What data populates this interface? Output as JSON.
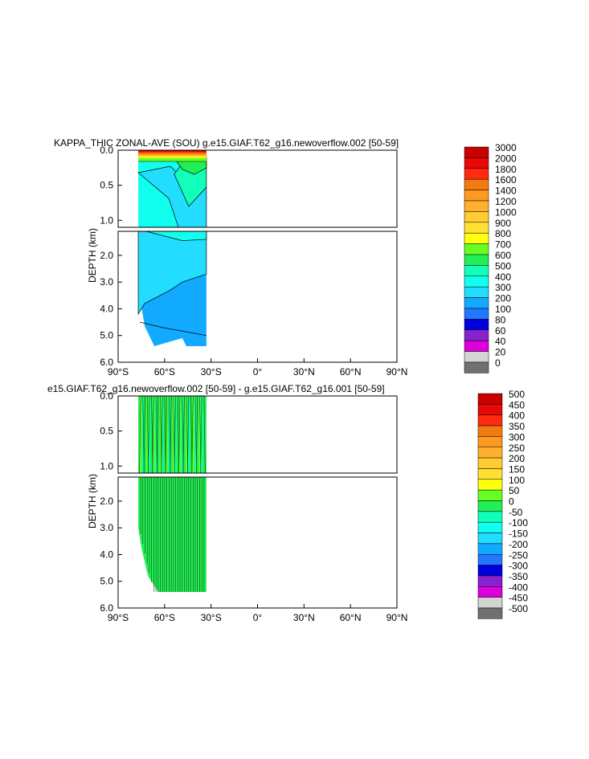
{
  "chart_data": [
    {
      "type": "contour",
      "title": "KAPPA_THIC ZONAL-AVE (SOU) g.e15.GIAF.T62_g16.newoverflow.002 [50-59]",
      "xlabel": "",
      "ylabel": "DEPTH (km)",
      "x_ticks": [
        "90°S",
        "60°S",
        "30°S",
        "0°",
        "30°N",
        "60°N",
        "90°N"
      ],
      "upper_y_ticks": [
        "0.0",
        "0.5",
        "1.0"
      ],
      "lower_y_ticks": [
        "2.0",
        "3.0",
        "4.0",
        "5.0",
        "6.0"
      ],
      "xlim": [
        -90,
        90
      ],
      "ylim": [
        0,
        6
      ],
      "depth_break_km": 1.1,
      "colorbar": {
        "levels": [
          "3000",
          "2000",
          "1800",
          "1600",
          "1400",
          "1200",
          "1000",
          "900",
          "800",
          "700",
          "600",
          "500",
          "400",
          "300",
          "200",
          "100",
          "80",
          "60",
          "40",
          "20",
          "0"
        ],
        "colors": [
          "#c80000",
          "#e80808",
          "#ff2a10",
          "#f27a10",
          "#ff9a20",
          "#ffb030",
          "#ffcc33",
          "#ffe033",
          "#ffff10",
          "#66ff22",
          "#22ee55",
          "#11ffb8",
          "#11ffee",
          "#22ddff",
          "#11aaff",
          "#2277ff",
          "#0000dd",
          "#8822cc",
          "#dd00dd",
          "#d4d4d4",
          "#707070"
        ]
      },
      "data_extent_lat": [
        -77,
        -33
      ],
      "max_depth_km": 5.4
    },
    {
      "type": "contour",
      "title": "e15.GIAF.T62_g16.newoverflow.002 [50-59] - g.e15.GIAF.T62_g16.001 [50-59]",
      "xlabel": "",
      "ylabel": "DEPTH (km)",
      "x_ticks": [
        "90°S",
        "60°S",
        "30°S",
        "0°",
        "30°N",
        "60°N",
        "90°N"
      ],
      "upper_y_ticks": [
        "0.0",
        "0.5",
        "1.0"
      ],
      "lower_y_ticks": [
        "2.0",
        "3.0",
        "4.0",
        "5.0",
        "6.0"
      ],
      "xlim": [
        -90,
        90
      ],
      "ylim": [
        0,
        6
      ],
      "depth_break_km": 1.1,
      "colorbar": {
        "levels": [
          "500",
          "450",
          "400",
          "350",
          "300",
          "250",
          "200",
          "150",
          "100",
          "50",
          "0",
          "-50",
          "-100",
          "-150",
          "-200",
          "-250",
          "-300",
          "-350",
          "-400",
          "-450",
          "-500"
        ],
        "colors": [
          "#c80000",
          "#e80808",
          "#ff2a10",
          "#f27a10",
          "#ff9a20",
          "#ffb030",
          "#ffcc33",
          "#ffe033",
          "#ffff10",
          "#66ff22",
          "#22ee55",
          "#11ffb8",
          "#11ffee",
          "#22ddff",
          "#11aaff",
          "#2277ff",
          "#0000dd",
          "#8822cc",
          "#dd00dd",
          "#d4d4d4",
          "#707070"
        ]
      },
      "data_extent_lat": [
        -77,
        -33
      ],
      "max_depth_km": 5.4
    }
  ]
}
